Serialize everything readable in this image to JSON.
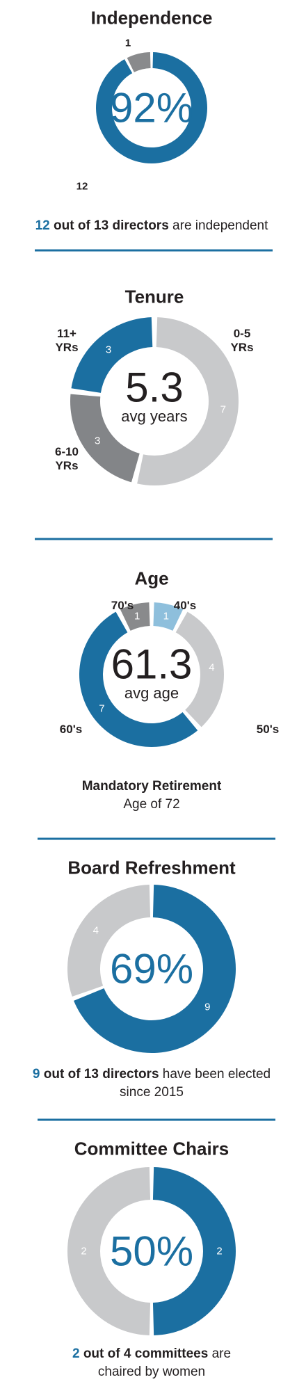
{
  "chart_data": [
    {
      "type": "donut",
      "title": "Independence",
      "center_text": "92%",
      "values": [
        12,
        1
      ],
      "colors": [
        "#1b6fa1",
        "#898a8c"
      ],
      "caption_highlight": "12",
      "caption_bold": "out of 13 directors",
      "caption_rest": "are independent"
    },
    {
      "type": "donut",
      "title": "Tenure",
      "center_text": "5.3",
      "center_subtext": "avg years",
      "categories": [
        "0-5 YRs",
        "6-10 YRs",
        "11+ YRs"
      ],
      "values": [
        7,
        3,
        3
      ],
      "colors": [
        "#c8c9cb",
        "#838588",
        "#1b6fa1"
      ]
    },
    {
      "type": "donut",
      "title": "Age",
      "center_text": "61.3",
      "center_subtext": "avg age",
      "categories": [
        "40's",
        "50's",
        "60's",
        "70's"
      ],
      "values": [
        1,
        4,
        7,
        1
      ],
      "colors": [
        "#8ebfdc",
        "#c8c9cb",
        "#1b6fa1",
        "#898a8c"
      ],
      "caption_bold": "Mandatory Retirement",
      "caption_rest": "Age of 72"
    },
    {
      "type": "donut",
      "title": "Board Refreshment",
      "center_text": "69%",
      "values": [
        9,
        4
      ],
      "colors": [
        "#1b6fa1",
        "#c8c9cb"
      ],
      "caption_highlight": "9",
      "caption_bold": "out of 13 directors",
      "caption_rest": "have been elected since 2015"
    },
    {
      "type": "donut",
      "title": "Committee Chairs",
      "center_text": "50%",
      "values": [
        2,
        2
      ],
      "colors": [
        "#1b6fa1",
        "#c8c9cb"
      ],
      "caption_highlight": "2",
      "caption_bold": "out of 4 committees",
      "caption_rest": "are chaired by women"
    }
  ]
}
